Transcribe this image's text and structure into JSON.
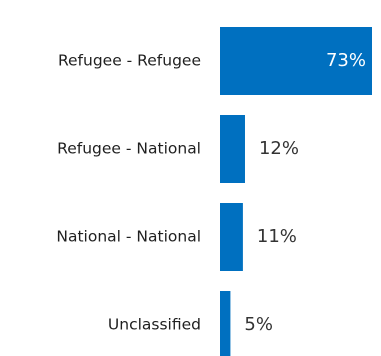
{
  "chart_data": {
    "type": "bar",
    "orientation": "horizontal",
    "categories": [
      "Refugee - Refugee",
      "Refugee - National",
      "National - National",
      "Unclassified"
    ],
    "values": [
      73,
      12,
      11,
      5
    ],
    "value_labels": [
      "73%",
      "12%",
      "11%",
      "5%"
    ],
    "unit": "%",
    "xlim": [
      0,
      73
    ],
    "title": "",
    "xlabel": "",
    "ylabel": "",
    "grid": false,
    "legend": "none",
    "bar_color": "#0070c0",
    "label_inside_color": "#ffffff",
    "label_outside_color": "#333333"
  }
}
